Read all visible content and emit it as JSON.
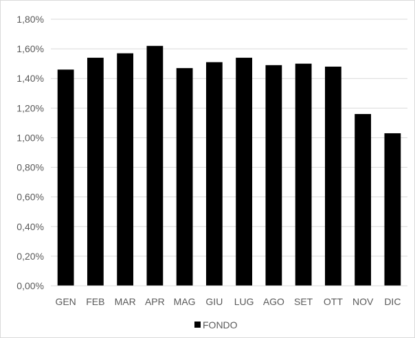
{
  "chart_data": {
    "type": "bar",
    "categories": [
      "GEN",
      "FEB",
      "MAR",
      "APR",
      "MAG",
      "GIU",
      "LUG",
      "AGO",
      "SET",
      "OTT",
      "NOV",
      "DIC"
    ],
    "series": [
      {
        "name": "FONDO",
        "values": [
          1.46,
          1.54,
          1.57,
          1.62,
          1.47,
          1.51,
          1.54,
          1.49,
          1.5,
          1.48,
          1.16,
          1.03
        ],
        "color": "#000000"
      }
    ],
    "y_ticks": [
      "0,00%",
      "0,20%",
      "0,40%",
      "0,60%",
      "0,80%",
      "1,00%",
      "1,20%",
      "1,40%",
      "1,60%",
      "1,80%"
    ],
    "ylim": [
      0,
      1.8
    ],
    "y_unit": "%",
    "grid": true,
    "legend_position": "bottom",
    "gridline_color": "#d9d9d9",
    "text_color": "#595959"
  }
}
